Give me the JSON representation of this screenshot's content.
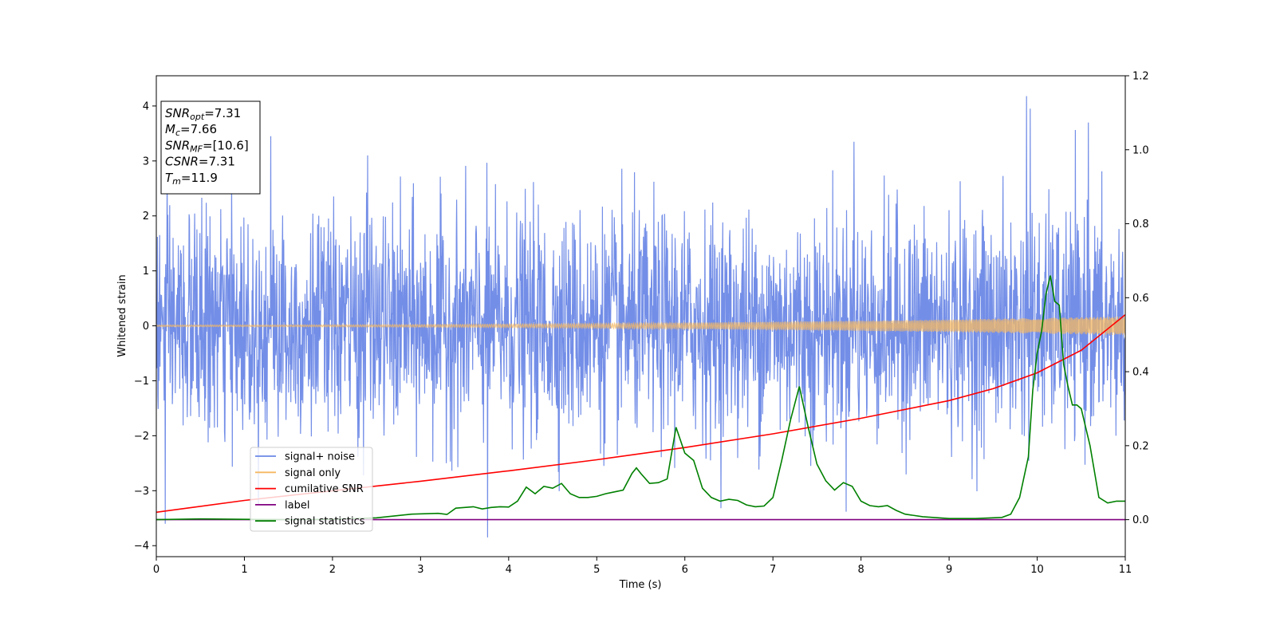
{
  "chart_data": {
    "type": "line",
    "title": "",
    "xlabel": "Time (s)",
    "ylabel": "Whitened strain",
    "xlim": [
      0,
      11
    ],
    "ylim": [
      -4.2,
      4.55
    ],
    "y2lim": [
      -0.1,
      1.2
    ],
    "x_ticks": [
      0,
      1,
      2,
      3,
      4,
      5,
      6,
      7,
      8,
      9,
      10,
      11
    ],
    "y_ticks": [
      -4,
      -3,
      -2,
      -1,
      0,
      1,
      2,
      3,
      4
    ],
    "y2_ticks": [
      0.0,
      0.2,
      0.4,
      0.6,
      0.8,
      1.0,
      1.2
    ],
    "y_tick_labels": [
      "−4",
      "−3",
      "−2",
      "−1",
      "0",
      "1",
      "2",
      "3",
      "4"
    ],
    "y2_tick_labels": [
      "0.0",
      "0.2",
      "0.4",
      "0.6",
      "0.8",
      "1.0",
      "1.2"
    ],
    "x_tick_labels": [
      "0",
      "1",
      "2",
      "3",
      "4",
      "5",
      "6",
      "7",
      "8",
      "9",
      "10",
      "11"
    ],
    "legend_position": "lower-left",
    "series": [
      {
        "name": "signal+ noise",
        "color": "#6b88e6",
        "axis": "left",
        "kind": "noise",
        "sigma": 1.0,
        "spikes": [
          [
            0.1,
            -3.6
          ],
          [
            3.76,
            -3.85
          ],
          [
            9.88,
            4.18
          ],
          [
            9.92,
            3.95
          ],
          [
            10.58,
            3.7
          ],
          [
            1.3,
            3.45
          ],
          [
            7.92,
            3.35
          ],
          [
            2.4,
            3.1
          ]
        ]
      },
      {
        "name": "signal only",
        "color": "#f5b862",
        "axis": "left",
        "kind": "chirp",
        "amplitude_start": 0.015,
        "amplitude_end": 0.17
      },
      {
        "name": "cumilative SNR",
        "color": "#ff0000",
        "axis": "right",
        "x": [
          0,
          1,
          2,
          3,
          4,
          5,
          6,
          7,
          8,
          9,
          9.5,
          10,
          10.5,
          11
        ],
        "values": [
          0.02,
          0.052,
          0.078,
          0.104,
          0.132,
          0.162,
          0.195,
          0.232,
          0.274,
          0.322,
          0.354,
          0.397,
          0.458,
          0.554
        ]
      },
      {
        "name": "label",
        "color": "#800080",
        "axis": "right",
        "x": [
          0,
          11
        ],
        "values": [
          0.0,
          0.0
        ]
      },
      {
        "name": "signal statistics",
        "color": "#008000",
        "axis": "right",
        "x": [
          0,
          0.5,
          1,
          1.5,
          2,
          2.5,
          2.9,
          3.2,
          3.3,
          3.4,
          3.5,
          3.6,
          3.7,
          3.8,
          3.9,
          4.0,
          4.1,
          4.2,
          4.3,
          4.4,
          4.5,
          4.6,
          4.7,
          4.8,
          4.9,
          5.0,
          5.1,
          5.2,
          5.3,
          5.4,
          5.45,
          5.5,
          5.6,
          5.7,
          5.8,
          5.9,
          6.0,
          6.1,
          6.2,
          6.3,
          6.4,
          6.5,
          6.6,
          6.7,
          6.8,
          6.9,
          7.0,
          7.1,
          7.2,
          7.3,
          7.4,
          7.5,
          7.6,
          7.7,
          7.8,
          7.9,
          8.0,
          8.1,
          8.2,
          8.3,
          8.4,
          8.5,
          8.7,
          9.0,
          9.3,
          9.6,
          9.7,
          9.8,
          9.9,
          9.95,
          10.0,
          10.05,
          10.1,
          10.15,
          10.2,
          10.25,
          10.3,
          10.35,
          10.4,
          10.45,
          10.5,
          10.55,
          10.6,
          10.7,
          10.8,
          10.9,
          11
        ],
        "values": [
          0.0,
          0.002,
          0.001,
          0.0,
          0.001,
          0.005,
          0.015,
          0.017,
          0.014,
          0.031,
          0.033,
          0.035,
          0.029,
          0.033,
          0.035,
          0.034,
          0.05,
          0.088,
          0.07,
          0.09,
          0.085,
          0.098,
          0.07,
          0.06,
          0.06,
          0.063,
          0.07,
          0.075,
          0.08,
          0.125,
          0.14,
          0.125,
          0.098,
          0.1,
          0.11,
          0.25,
          0.18,
          0.16,
          0.085,
          0.06,
          0.05,
          0.055,
          0.052,
          0.04,
          0.035,
          0.037,
          0.06,
          0.16,
          0.27,
          0.36,
          0.25,
          0.15,
          0.105,
          0.08,
          0.1,
          0.09,
          0.05,
          0.038,
          0.035,
          0.038,
          0.025,
          0.015,
          0.008,
          0.003,
          0.003,
          0.006,
          0.015,
          0.06,
          0.17,
          0.35,
          0.45,
          0.51,
          0.61,
          0.66,
          0.59,
          0.58,
          0.42,
          0.36,
          0.31,
          0.31,
          0.3,
          0.25,
          0.2,
          0.06,
          0.045,
          0.05,
          0.05
        ]
      }
    ],
    "annotation": {
      "lines": [
        {
          "main": "SNR",
          "sub": "opt",
          "rest": "=7.31"
        },
        {
          "main": "M",
          "sub": "c",
          "rest": "=7.66"
        },
        {
          "main": "SNR",
          "sub": "MF",
          "rest": "=[10.6]"
        },
        {
          "main": "CSNR",
          "sub": "",
          "rest": "=7.31"
        },
        {
          "main": "T",
          "sub": "m",
          "rest": "=11.9"
        }
      ]
    }
  }
}
